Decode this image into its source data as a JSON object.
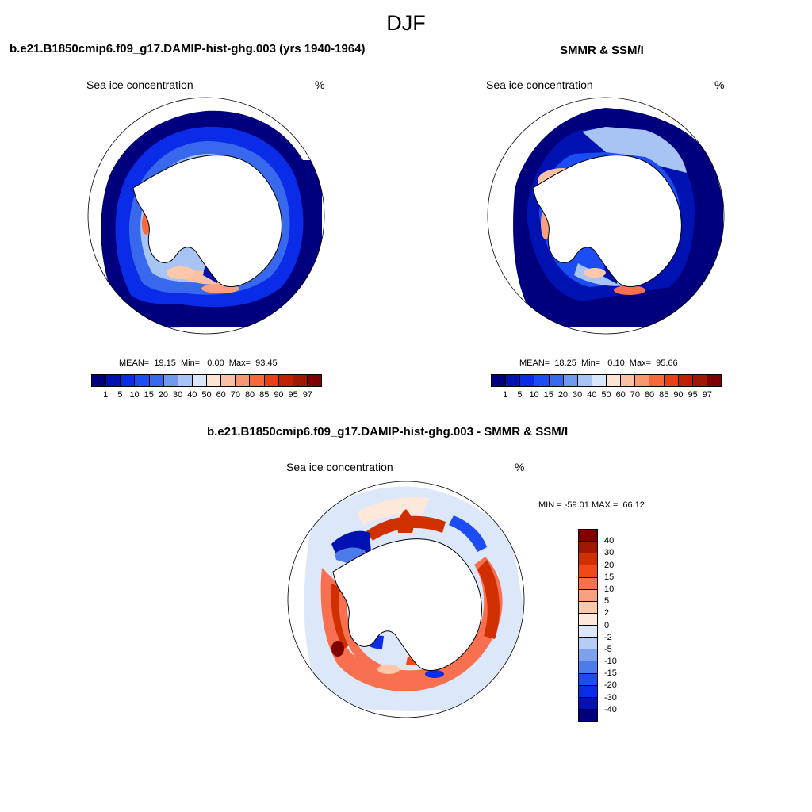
{
  "figure": {
    "season": "DJF"
  },
  "panels": [
    {
      "title": "b.e21.B1850cmip6.f09_g17.DAMIP-hist-ghg.003 (yrs 1940-1964)",
      "variable": "Sea ice concentration",
      "units": "%",
      "stats_text": "MEAN=  19.15  Min=   0.00  Max=  93.45",
      "mean": 19.15,
      "min": 0.0,
      "max": 93.45
    },
    {
      "title": "SMMR & SSM/I",
      "variable": "Sea ice concentration",
      "units": "%",
      "stats_text": "MEAN=  18.25  Min=   0.10  Max=  95.66",
      "mean": 18.25,
      "min": 0.1,
      "max": 95.66
    },
    {
      "title": "b.e21.B1850cmip6.f09_g17.DAMIP-hist-ghg.003 - SMMR & SSM/I",
      "variable": "Sea ice concentration",
      "units": "%",
      "stats_text": "MIN = -59.01 MAX =  66.12",
      "min": -59.01,
      "max": 66.12
    }
  ],
  "colorbars": {
    "concentration": {
      "labels": [
        "1",
        "5",
        "10",
        "15",
        "20",
        "30",
        "40",
        "50",
        "60",
        "70",
        "80",
        "85",
        "90",
        "95",
        "97"
      ],
      "colors": [
        "#00007f",
        "#0012b2",
        "#0a2ce8",
        "#1c4cf4",
        "#3868ee",
        "#7098f0",
        "#a8c4f4",
        "#d8e8fa",
        "#fce4d4",
        "#f8c0a4",
        "#f89870",
        "#f86838",
        "#e84010",
        "#c02000",
        "#a01800",
        "#800000"
      ]
    },
    "difference": {
      "labels": [
        "40",
        "30",
        "20",
        "15",
        "10",
        "5",
        "2",
        "0",
        "-2",
        "-5",
        "-10",
        "-15",
        "-20",
        "-30",
        "-40"
      ],
      "colors": [
        "#800000",
        "#a01800",
        "#d03000",
        "#f04818",
        "#f87050",
        "#f8a080",
        "#fcc8a8",
        "#fde8da",
        "#dce8fa",
        "#b4ccf6",
        "#7ca2ee",
        "#4c7cec",
        "#1c4cf4",
        "#0a2ce8",
        "#0012b2",
        "#00007f"
      ]
    }
  },
  "chart_data": [
    {
      "type": "map",
      "title": "b.e21.B1850cmip6.f09_g17.DAMIP-hist-ghg.003 (yrs 1940-1964)",
      "projection": "south-polar-stereographic",
      "variable": "Sea ice concentration (%)",
      "mean": 19.15,
      "min": 0.0,
      "max": 93.45,
      "levels": [
        1,
        5,
        10,
        15,
        20,
        30,
        40,
        50,
        60,
        70,
        80,
        85,
        90,
        95,
        97
      ]
    },
    {
      "type": "map",
      "title": "SMMR & SSM/I",
      "projection": "south-polar-stereographic",
      "variable": "Sea ice concentration (%)",
      "mean": 18.25,
      "min": 0.1,
      "max": 95.66,
      "levels": [
        1,
        5,
        10,
        15,
        20,
        30,
        40,
        50,
        60,
        70,
        80,
        85,
        90,
        95,
        97
      ]
    },
    {
      "type": "map",
      "title": "b.e21.B1850cmip6.f09_g17.DAMIP-hist-ghg.003 - SMMR & SSM/I",
      "projection": "south-polar-stereographic",
      "variable": "Sea ice concentration difference (%)",
      "min": -59.01,
      "max": 66.12,
      "levels": [
        -40,
        -30,
        -20,
        -15,
        -10,
        -5,
        -2,
        0,
        2,
        5,
        10,
        15,
        20,
        30,
        40
      ]
    }
  ]
}
